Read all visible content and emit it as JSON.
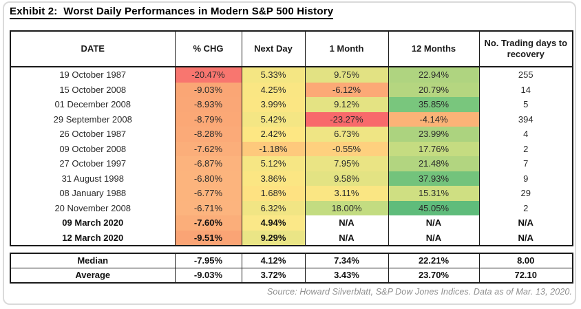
{
  "title": "Exhibit 2:  Worst Daily Performances in Modern S&P 500 History",
  "source": "Source: Howard Silverblatt, S&P Dow Jones Indices. Data as of Mar. 13, 2020.",
  "chart_data": {
    "type": "table",
    "column_keys": [
      "date",
      "chg",
      "next-day",
      "one-month",
      "twelve-months",
      "recovery"
    ],
    "headers": [
      "DATE",
      "% CHG",
      "Next Day",
      "1 Month",
      "12 Months",
      "No. Trading days to recovery"
    ],
    "rows": [
      {
        "date": "19 October 1987",
        "bold": false,
        "cells": [
          {
            "v": "-20.47%",
            "bg": "#F8766F"
          },
          {
            "v": "5.33%",
            "bg": "#F4E683"
          },
          {
            "v": "9.75%",
            "bg": "#E2E283"
          },
          {
            "v": "22.94%",
            "bg": "#AFD480"
          },
          {
            "v": "255",
            "bg": "#FFFFFF"
          }
        ]
      },
      {
        "date": "15 October 2008",
        "bold": false,
        "cells": [
          {
            "v": "-9.03%",
            "bg": "#FAA675"
          },
          {
            "v": "4.25%",
            "bg": "#FAE683"
          },
          {
            "v": "-6.12%",
            "bg": "#FCA976"
          },
          {
            "v": "20.79%",
            "bg": "#B5D680"
          },
          {
            "v": "14",
            "bg": "#FFFFFF"
          }
        ]
      },
      {
        "date": "01 December 2008",
        "bold": false,
        "cells": [
          {
            "v": "-8.93%",
            "bg": "#FAA776"
          },
          {
            "v": "3.99%",
            "bg": "#FBE683"
          },
          {
            "v": "9.12%",
            "bg": "#E4E383"
          },
          {
            "v": "35.85%",
            "bg": "#79C67D"
          },
          {
            "v": "5",
            "bg": "#FFFFFF"
          }
        ]
      },
      {
        "date": "29 September 2008",
        "bold": false,
        "cells": [
          {
            "v": "-8.79%",
            "bg": "#FBA876"
          },
          {
            "v": "5.42%",
            "bg": "#F4E684"
          },
          {
            "v": "-23.27%",
            "bg": "#F8696B"
          },
          {
            "v": "-4.14%",
            "bg": "#FBB377"
          },
          {
            "v": "394",
            "bg": "#FFFFFF"
          }
        ]
      },
      {
        "date": "26 October 1987",
        "bold": false,
        "cells": [
          {
            "v": "-8.28%",
            "bg": "#FBAA78"
          },
          {
            "v": "2.42%",
            "bg": "#FDE783"
          },
          {
            "v": "6.73%",
            "bg": "#EFE584"
          },
          {
            "v": "23.99%",
            "bg": "#ACD37F"
          },
          {
            "v": "4",
            "bg": "#FFFFFF"
          }
        ]
      },
      {
        "date": "09 October 2008",
        "bold": false,
        "cells": [
          {
            "v": "-7.62%",
            "bg": "#FBAE7A"
          },
          {
            "v": "-1.18%",
            "bg": "#FEC97C"
          },
          {
            "v": "-0.55%",
            "bg": "#FED07E"
          },
          {
            "v": "17.76%",
            "bg": "#C5DC81"
          },
          {
            "v": "2",
            "bg": "#FFFFFF"
          }
        ]
      },
      {
        "date": "27 October 1997",
        "bold": false,
        "cells": [
          {
            "v": "-6.87%",
            "bg": "#FCB37D"
          },
          {
            "v": "5.12%",
            "bg": "#F6E684"
          },
          {
            "v": "7.95%",
            "bg": "#EAE484"
          },
          {
            "v": "21.48%",
            "bg": "#B2D580"
          },
          {
            "v": "7",
            "bg": "#FFFFFF"
          }
        ]
      },
      {
        "date": "31 August 1998",
        "bold": false,
        "cells": [
          {
            "v": "-6.80%",
            "bg": "#FCB47D"
          },
          {
            "v": "3.86%",
            "bg": "#FBE683"
          },
          {
            "v": "9.58%",
            "bg": "#E3E383"
          },
          {
            "v": "37.93%",
            "bg": "#73C37C"
          },
          {
            "v": "9",
            "bg": "#FFFFFF"
          }
        ]
      },
      {
        "date": "08 January 1988",
        "bold": false,
        "cells": [
          {
            "v": "-6.77%",
            "bg": "#FCB47D"
          },
          {
            "v": "1.68%",
            "bg": "#FEE282"
          },
          {
            "v": "3.11%",
            "bg": "#FAE683"
          },
          {
            "v": "15.31%",
            "bg": "#CFDF82"
          },
          {
            "v": "29",
            "bg": "#FFFFFF"
          }
        ]
      },
      {
        "date": "20 November 2008",
        "bold": false,
        "cells": [
          {
            "v": "-6.71%",
            "bg": "#FCB47E"
          },
          {
            "v": "6.32%",
            "bg": "#F1E584"
          },
          {
            "v": "18.00%",
            "bg": "#C3DC81"
          },
          {
            "v": "45.05%",
            "bg": "#5FBC7B"
          },
          {
            "v": "2",
            "bg": "#FFFFFF"
          }
        ]
      },
      {
        "date": "09 March 2020",
        "bold": true,
        "cells": [
          {
            "v": "-7.60%",
            "bg": "#FBAE7A"
          },
          {
            "v": "4.94%",
            "bg": "#FBE888"
          },
          {
            "v": "N/A",
            "bg": "#FFFFFF"
          },
          {
            "v": "N/A",
            "bg": "#FFFFFF"
          },
          {
            "v": "N/A",
            "bg": "#FFFFFF"
          }
        ]
      },
      {
        "date": "12 March 2020",
        "bold": true,
        "cells": [
          {
            "v": "-9.51%",
            "bg": "#FAA475"
          },
          {
            "v": "9.29%",
            "bg": "#EAE586"
          },
          {
            "v": "N/A",
            "bg": "#FFFFFF"
          },
          {
            "v": "N/A",
            "bg": "#FFFFFF"
          },
          {
            "v": "N/A",
            "bg": "#FFFFFF"
          }
        ]
      }
    ],
    "summary_rows": [
      {
        "label": "Median",
        "cells": [
          "-7.95%",
          "4.12%",
          "7.34%",
          "22.21%",
          "8.00"
        ]
      },
      {
        "label": "Average",
        "cells": [
          "-9.03%",
          "3.72%",
          "3.43%",
          "23.70%",
          "72.10"
        ]
      }
    ],
    "heatmap_scale": {
      "low": "#F8696B",
      "mid": "#FFEB84",
      "high": "#63BE7B"
    }
  }
}
